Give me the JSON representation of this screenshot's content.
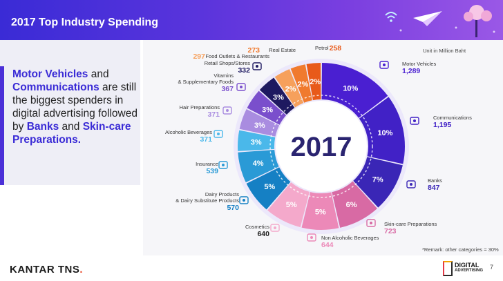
{
  "slide": {
    "title": "2017 Top Industry Spending",
    "summary": {
      "p1": "Motor Vehicles",
      "p2": " and ",
      "p3": "Communications",
      "p4": " are still the  biggest spenders in digital advertising followed by ",
      "p5": "Banks",
      "p6": " and ",
      "p7": "Skin-care Preparations."
    },
    "unit_note": "Unit in Million Baht",
    "remark": "*Remark: other categories = 30%",
    "brand": {
      "name": "KANTAR TNS",
      "suffix": "."
    },
    "page_number": "7",
    "logo": {
      "line1": "DIGITAL",
      "line2": "ADVERTISING"
    },
    "colors": {
      "banner": "#4b30d8",
      "accent": "#3a2bd6"
    }
  },
  "chart_data": {
    "type": "pie",
    "style": "donut",
    "center_label": "2017",
    "order": "clockwise from 12 o'clock",
    "slices": [
      {
        "name": "Motor Vehicles",
        "value": 1289,
        "label": "10%",
        "color": "#4a1fd1",
        "icon": "car-icon"
      },
      {
        "name": "Communications",
        "value": 1195,
        "label": "10%",
        "color": "#4121c6",
        "icon": "chat-bubble-icon"
      },
      {
        "name": "Banks",
        "value": 847,
        "label": "7%",
        "color": "#3a26b6",
        "icon": "bank-icon"
      },
      {
        "name": "Skin-care Preparations",
        "value": 723,
        "label": "6%",
        "color": "#d86aa4",
        "icon": "mask-icon"
      },
      {
        "name": "Non Alcoholic Beverages",
        "value": 644,
        "label": "5%",
        "color": "#ec89b8",
        "icon": "drink-icon"
      },
      {
        "name": "Cosmetics",
        "value": 640,
        "label": "5%",
        "color": "#f4a9cb",
        "icon": "lipstick-icon"
      },
      {
        "name": "Dairy Products & Dairy Substitute Products",
        "value": 570,
        "label": "5%",
        "color": "#1580c4",
        "icon": "milk-carton-icon"
      },
      {
        "name": "Insurance",
        "value": 539,
        "label": "4%",
        "color": "#2a9ad6",
        "icon": "shield-icon"
      },
      {
        "name": "Alcoholic Beverages",
        "value": 371,
        "label": "3%",
        "color": "#4ab8ea",
        "icon": "beer-mug-icon"
      },
      {
        "name": "Hair Preparations",
        "value": 371,
        "label": "3%",
        "color": "#a98ce0",
        "icon": "hair-icon"
      },
      {
        "name": "Vitamins & Supplementary Foods",
        "value": 367,
        "label": "3%",
        "color": "#7a4fcc",
        "icon": "pill-icon"
      },
      {
        "name": "Retail Shops/Stores",
        "value": 332,
        "label": "3%",
        "color": "#1e1960",
        "icon": "store-icon"
      },
      {
        "name": "Food Outlets & Restaurants",
        "value": 297,
        "label": "2%",
        "color": "#f6a05c",
        "icon": "food-icon"
      },
      {
        "name": "Real Estate",
        "value": 273,
        "label": "2%",
        "color": "#f07a2e",
        "icon": "building-icon"
      },
      {
        "name": "Petrol",
        "value": 258,
        "label": "2%",
        "color": "#e85a1a",
        "icon": "fuel-icon"
      }
    ]
  }
}
